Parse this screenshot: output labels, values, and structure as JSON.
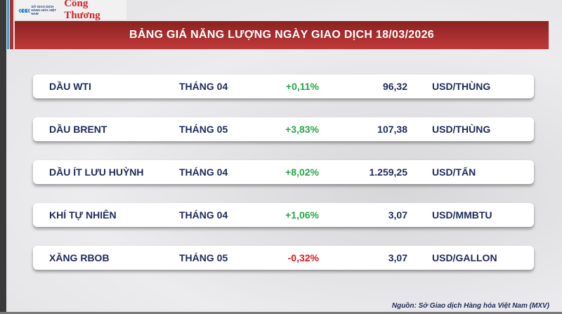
{
  "logo": {
    "org": "SỞ GIAO DỊCH HÀNG HÓA VIỆT NAM",
    "brand": "Công Thương"
  },
  "title": "BẢNG GIÁ NĂNG LƯỢNG NGÀY GIAO DỊCH 18/03/2026",
  "colors": {
    "up": "#25a745",
    "down": "#e0161d",
    "banner": "#b2302d",
    "text": "#1c2a5c"
  },
  "rows": [
    {
      "name": "DẦU WTI",
      "month": "THÁNG 04",
      "change": "+0,11%",
      "price": "96,32",
      "unit": "USD/THÙNG",
      "dir": "up"
    },
    {
      "name": "DẦU BRENT",
      "month": "THÁNG 05",
      "change": "+3,83%",
      "price": "107,38",
      "unit": "USD/THÙNG",
      "dir": "up"
    },
    {
      "name": "DẦU ÍT LƯU HUỲNH",
      "month": "THÁNG 04",
      "change": "+8,02%",
      "price": "1.259,25",
      "unit": "USD/TẤN",
      "dir": "up"
    },
    {
      "name": "KHÍ TỰ NHIÊN",
      "month": "THÁNG 04",
      "change": "+1,06%",
      "price": "3,07",
      "unit": "USD/MMBTU",
      "dir": "up"
    },
    {
      "name": "XĂNG RBOB",
      "month": "THÁNG 05",
      "change": "-0,32%",
      "price": "3,07",
      "unit": "USD/GALLON",
      "dir": "down"
    }
  ],
  "source": "Nguồn: Sở Giao dịch Hàng hóa Việt Nam (MXV)"
}
